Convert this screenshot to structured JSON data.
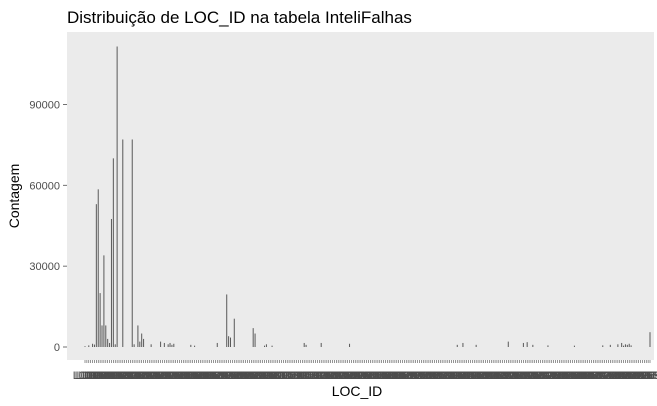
{
  "chart_data": {
    "type": "bar",
    "title": "Distribuição de LOC_ID na tabela InteliFalhas",
    "xlabel": "LOC_ID",
    "ylabel": "Contagem",
    "ylim": [
      0,
      115000
    ],
    "yticks": [
      0,
      30000,
      60000,
      90000
    ],
    "ytick_labels": [
      "0",
      "30000",
      "60000",
      "90000"
    ],
    "background": "#ebebeb",
    "bar_color": "#595959",
    "grid": false,
    "legend": "none",
    "x_tick_labels_note": "x tick labels are overlapping and unreadable",
    "categories": [
      "L001",
      "L002",
      "L003",
      "L004",
      "L005",
      "L006",
      "L007",
      "L008",
      "L009",
      "L010",
      "L011",
      "L012",
      "L013",
      "L014",
      "L015",
      "L016",
      "L017",
      "L018",
      "L019",
      "L020",
      "L021",
      "L022",
      "L023",
      "L024",
      "L025",
      "L026",
      "L027",
      "L028",
      "L029",
      "L030",
      "L031",
      "L032",
      "L033",
      "L034",
      "L035",
      "L036",
      "L037",
      "L038",
      "L039",
      "L040",
      "L041",
      "L042",
      "L043",
      "L044",
      "L045",
      "L046",
      "L047",
      "L048",
      "L049",
      "L050",
      "L051",
      "L052",
      "L053",
      "L054",
      "L055",
      "L056",
      "L057",
      "L058",
      "L059",
      "L060",
      "L061",
      "L062",
      "L063",
      "L064",
      "L065",
      "L066",
      "L067",
      "L068",
      "L069",
      "L070",
      "L071",
      "L072",
      "L073",
      "L074",
      "L075",
      "L076",
      "L077",
      "L078",
      "L079",
      "L080",
      "L081",
      "L082",
      "L083",
      "L084",
      "L085",
      "L086",
      "L087",
      "L088",
      "L089",
      "L090",
      "L091",
      "L092",
      "L093",
      "L094",
      "L095",
      "L096",
      "L097",
      "L098",
      "L099",
      "L100",
      "L101",
      "L102",
      "L103",
      "L104",
      "L105",
      "L106",
      "L107",
      "L108",
      "L109",
      "L110",
      "L111",
      "L112",
      "L113",
      "L114",
      "L115",
      "L116",
      "L117",
      "L118",
      "L119",
      "L120",
      "L121",
      "L122",
      "L123",
      "L124",
      "L125",
      "L126",
      "L127",
      "L128",
      "L129",
      "L130",
      "L131",
      "L132",
      "L133",
      "L134",
      "L135",
      "L136",
      "L137",
      "L138",
      "L139",
      "L140",
      "L141",
      "L142",
      "L143",
      "L144",
      "L145",
      "L146",
      "L147",
      "L148",
      "L149",
      "L150",
      "L151",
      "L152",
      "L153",
      "L154",
      "L155",
      "L156",
      "L157",
      "L158",
      "L159",
      "L160",
      "L161",
      "L162",
      "L163",
      "L164",
      "L165",
      "L166",
      "L167",
      "L168",
      "L169",
      "L170",
      "L171",
      "L172",
      "L173",
      "L174",
      "L175",
      "L176",
      "L177",
      "L178",
      "L179",
      "L180",
      "L181",
      "L182",
      "L183",
      "L184",
      "L185",
      "L186",
      "L187",
      "L188",
      "L189",
      "L190",
      "L191",
      "L192",
      "L193",
      "L194",
      "L195",
      "L196",
      "L197",
      "L198",
      "L199",
      "L200",
      "L201",
      "L202",
      "L203",
      "L204",
      "L205",
      "L206",
      "L207",
      "L208",
      "L209",
      "L210",
      "L211",
      "L212",
      "L213",
      "L214",
      "L215",
      "L216",
      "L217",
      "L218",
      "L219",
      "L220",
      "L221",
      "L222",
      "L223",
      "L224",
      "L225",
      "L226",
      "L227",
      "L228",
      "L229",
      "L230",
      "L231",
      "L232",
      "L233",
      "L234",
      "L235",
      "L236",
      "L237",
      "L238",
      "L239",
      "L240",
      "L241",
      "L242",
      "L243",
      "L244",
      "L245",
      "L246",
      "L247",
      "L248",
      "L249",
      "L250",
      "L251",
      "L252",
      "L253",
      "L254",
      "L255",
      "L256",
      "L257",
      "L258",
      "L259",
      "L260",
      "L261",
      "L262",
      "L263",
      "L264",
      "L265",
      "L266",
      "L267",
      "L268",
      "L269",
      "L270",
      "L271",
      "L272",
      "L273",
      "L274",
      "L275",
      "L276",
      "L277",
      "L278",
      "L279",
      "L280",
      "L281",
      "L282",
      "L283",
      "L284",
      "L285",
      "L286",
      "L287",
      "L288",
      "L289",
      "L290",
      "L291",
      "L292",
      "L293",
      "L294",
      "L295",
      "L296",
      "L297",
      "L298",
      "L299",
      "L300"
    ],
    "values": [
      300,
      0,
      600,
      0,
      1200,
      900,
      53000,
      58500,
      20000,
      8000,
      34000,
      8000,
      3000,
      1500,
      47500,
      70000,
      1000,
      111500,
      0,
      0,
      77000,
      0,
      0,
      0,
      0,
      77000,
      1000,
      0,
      8000,
      2000,
      5000,
      3000,
      0,
      0,
      0,
      1000,
      0,
      0,
      0,
      0,
      2000,
      0,
      1500,
      0,
      1000,
      1500,
      800,
      1200,
      0,
      0,
      0,
      0,
      0,
      0,
      0,
      0,
      800,
      0,
      500,
      0,
      0,
      0,
      0,
      0,
      0,
      0,
      0,
      0,
      0,
      0,
      1500,
      0,
      0,
      0,
      0,
      19500,
      4000,
      3500,
      0,
      10500,
      0,
      0,
      0,
      0,
      0,
      0,
      0,
      0,
      0,
      7000,
      5000,
      0,
      0,
      0,
      0,
      500,
      1000,
      0,
      0,
      500,
      0,
      0,
      0,
      0,
      0,
      0,
      0,
      0,
      0,
      0,
      0,
      0,
      0,
      0,
      0,
      0,
      1500,
      800,
      0,
      0,
      0,
      0,
      0,
      0,
      0,
      1500,
      0,
      0,
      0,
      0,
      0,
      0,
      0,
      0,
      0,
      0,
      0,
      0,
      0,
      0,
      1200,
      0,
      0,
      0,
      0,
      0,
      0,
      0,
      0,
      0,
      0,
      0,
      0,
      0,
      0,
      0,
      0,
      0,
      0,
      0,
      0,
      0,
      0,
      0,
      0,
      0,
      0,
      0,
      0,
      0,
      0,
      0,
      0,
      0,
      0,
      0,
      0,
      0,
      0,
      0,
      0,
      0,
      0,
      0,
      0,
      0,
      0,
      0,
      0,
      0,
      0,
      0,
      0,
      0,
      0,
      0,
      0,
      800,
      0,
      0,
      1500,
      0,
      0,
      0,
      0,
      0,
      0,
      800,
      0,
      0,
      0,
      0,
      0,
      0,
      0,
      0,
      0,
      0,
      0,
      0,
      0,
      0,
      0,
      0,
      2000,
      0,
      0,
      0,
      0,
      0,
      0,
      0,
      1500,
      0,
      1800,
      0,
      0,
      800,
      0,
      0,
      0,
      0,
      0,
      0,
      0,
      600,
      0,
      0,
      0,
      0,
      0,
      0,
      0,
      0,
      0,
      0,
      0,
      0,
      0,
      500,
      0,
      0,
      0,
      0,
      0,
      0,
      0,
      0,
      0,
      0,
      0,
      0,
      0,
      0,
      600,
      0,
      0,
      0,
      800,
      0,
      0,
      0,
      1000,
      0,
      1500,
      500,
      1000,
      800,
      1200,
      600,
      0,
      0,
      0,
      0,
      0,
      0,
      0,
      0,
      0,
      5500
    ]
  }
}
